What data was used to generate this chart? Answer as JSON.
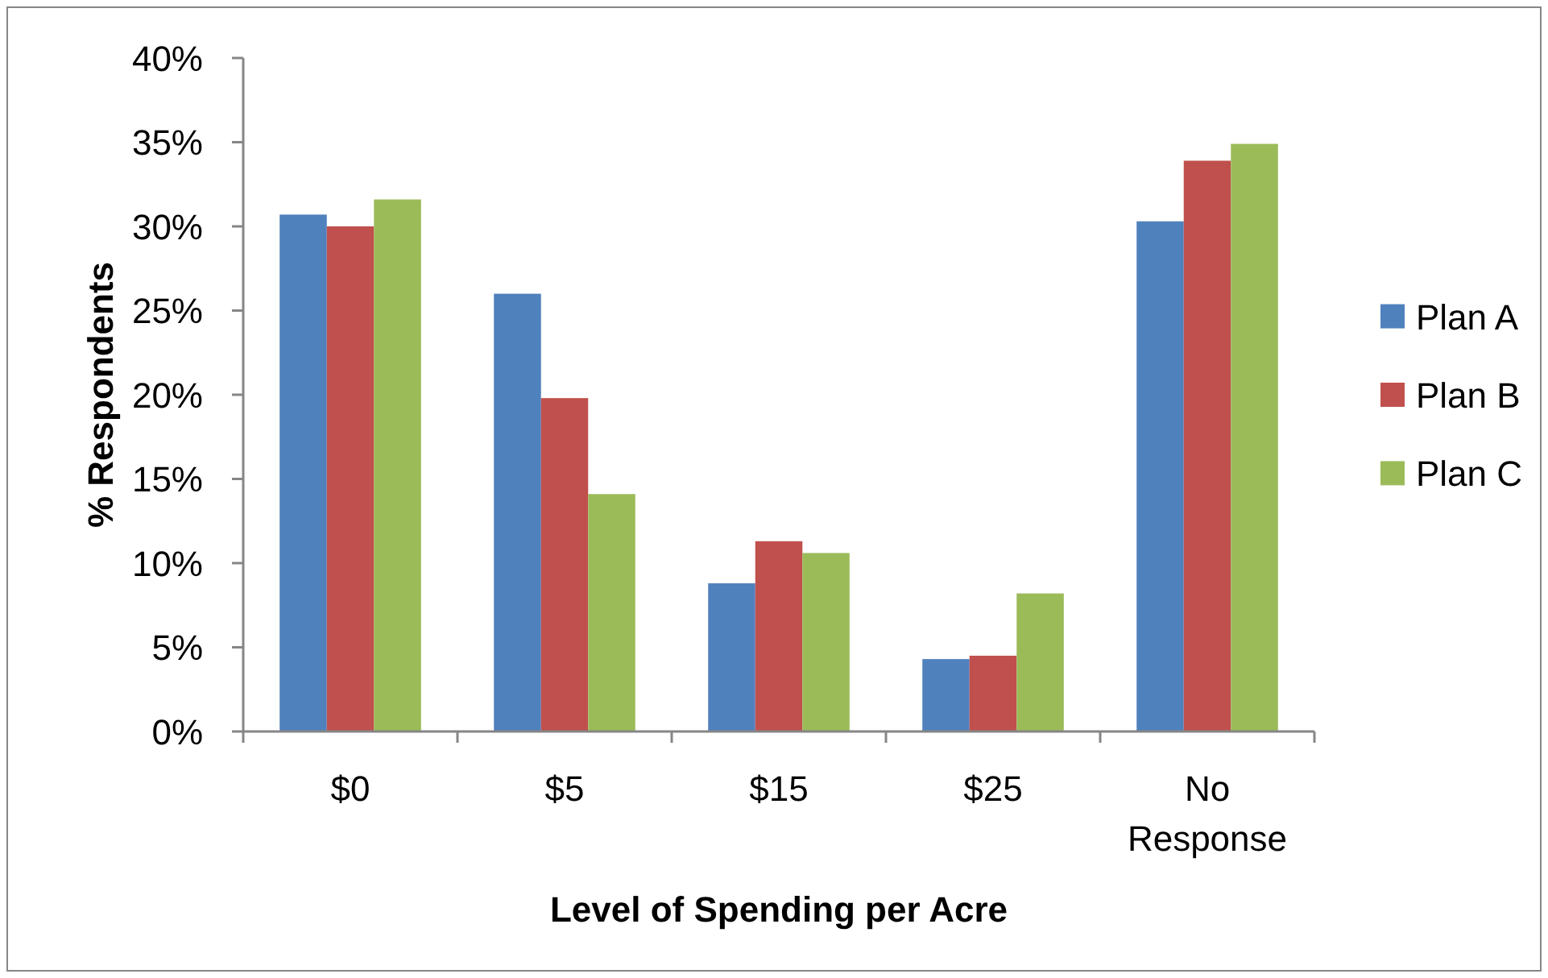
{
  "chart_data": {
    "type": "bar",
    "xlabel": "Level of Spending per Acre",
    "ylabel": "% Respondents",
    "categories": [
      "$0",
      "$5",
      "$15",
      "$25",
      "No Response"
    ],
    "series": [
      {
        "name": "Plan A",
        "color": "#4f81bd",
        "values": [
          30.7,
          26.0,
          8.8,
          4.3,
          30.3
        ]
      },
      {
        "name": "Plan B",
        "color": "#c0504d",
        "values": [
          30.0,
          19.8,
          11.3,
          4.5,
          33.9
        ]
      },
      {
        "name": "Plan C",
        "color": "#9bbb59",
        "values": [
          31.6,
          14.1,
          10.6,
          8.2,
          34.9
        ]
      }
    ],
    "ylim": [
      0,
      40
    ],
    "yticks": [
      {
        "value": 0,
        "label": "0%"
      },
      {
        "value": 5,
        "label": "5%"
      },
      {
        "value": 10,
        "label": "10%"
      },
      {
        "value": 15,
        "label": "15%"
      },
      {
        "value": 20,
        "label": "20%"
      },
      {
        "value": 25,
        "label": "25%"
      },
      {
        "value": 30,
        "label": "30%"
      },
      {
        "value": 35,
        "label": "35%"
      },
      {
        "value": 40,
        "label": "40%"
      }
    ],
    "legend": "right"
  }
}
